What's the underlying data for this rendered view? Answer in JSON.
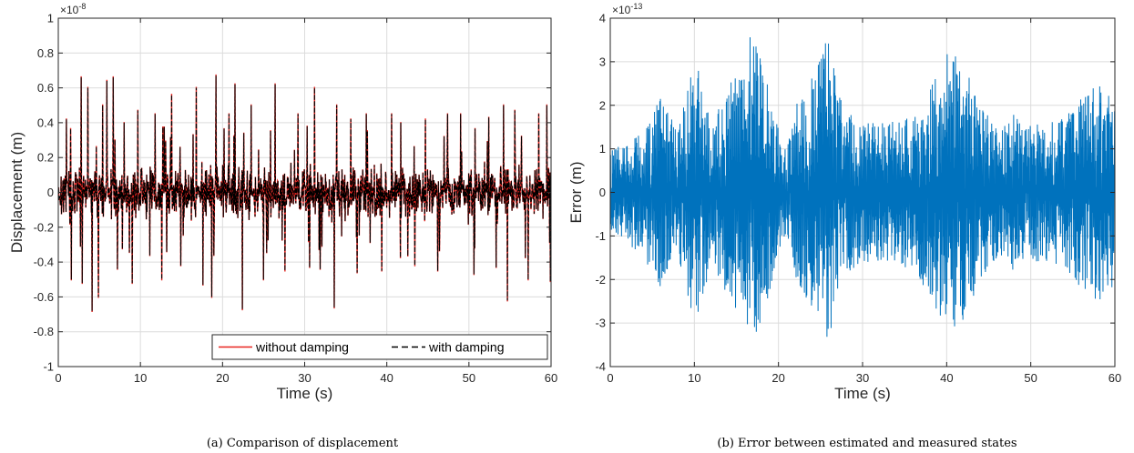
{
  "chart_data": [
    {
      "type": "line",
      "caption": "(a) Comparison of displacement",
      "xlabel": "Time (s)",
      "ylabel": "Displacement (m)",
      "xlim": [
        0,
        60
      ],
      "ylim": [
        -1,
        1
      ],
      "y_multiplier": "×10",
      "y_exponent": "-8",
      "xticks": [
        0,
        10,
        20,
        30,
        40,
        50,
        60
      ],
      "yticks": [
        -1,
        -0.8,
        -0.6,
        -0.4,
        -0.2,
        0,
        0.2,
        0.4,
        0.6,
        0.8,
        1
      ],
      "ytick_labels": [
        "-1",
        "-0.8",
        "-0.6",
        "-0.4",
        "-0.2",
        "0",
        "0.2",
        "0.4",
        "0.6",
        "0.8",
        "1"
      ],
      "grid": true,
      "legend_position": "bottom-right",
      "noise_amplitude": 0.16,
      "series": [
        {
          "name": "without damping",
          "color": "#e8231f",
          "style": "solid"
        },
        {
          "name": "with damping",
          "color": "#000000",
          "style": "dashed"
        }
      ],
      "peaks": [
        [
          1.0,
          0.42
        ],
        [
          1.6,
          -0.5
        ],
        [
          2.8,
          0.66
        ],
        [
          2.9,
          -0.52
        ],
        [
          3.6,
          0.6
        ],
        [
          4.1,
          -0.68
        ],
        [
          4.9,
          -0.6
        ],
        [
          5.4,
          0.5
        ],
        [
          5.9,
          0.64
        ],
        [
          6.7,
          0.66
        ],
        [
          7.2,
          -0.44
        ],
        [
          8.0,
          0.4
        ],
        [
          9.0,
          -0.52
        ],
        [
          9.7,
          0.47
        ],
        [
          11.8,
          0.45
        ],
        [
          12.6,
          -0.5
        ],
        [
          13.8,
          0.56
        ],
        [
          14.9,
          -0.42
        ],
        [
          16.8,
          0.6
        ],
        [
          17.6,
          -0.53
        ],
        [
          18.7,
          -0.6
        ],
        [
          19.2,
          0.67
        ],
        [
          20.8,
          0.45
        ],
        [
          21.5,
          0.62
        ],
        [
          22.4,
          -0.67
        ],
        [
          23.5,
          0.5
        ],
        [
          25.0,
          -0.5
        ],
        [
          26.4,
          0.62
        ],
        [
          27.6,
          -0.45
        ],
        [
          29.2,
          0.45
        ],
        [
          30.6,
          -0.43
        ],
        [
          31.2,
          0.6
        ],
        [
          31.9,
          -0.44
        ],
        [
          33.6,
          -0.66
        ],
        [
          33.9,
          0.5
        ],
        [
          35.6,
          0.42
        ],
        [
          36.4,
          -0.46
        ],
        [
          37.5,
          0.45
        ],
        [
          39.4,
          -0.45
        ],
        [
          40.6,
          0.45
        ],
        [
          41.7,
          0.4
        ],
        [
          43.4,
          -0.42
        ],
        [
          44.7,
          0.42
        ],
        [
          46.2,
          -0.45
        ],
        [
          47.4,
          0.45
        ],
        [
          49.0,
          0.45
        ],
        [
          50.6,
          -0.47
        ],
        [
          52.4,
          0.43
        ],
        [
          53.3,
          -0.43
        ],
        [
          54.2,
          0.5
        ],
        [
          54.7,
          -0.62
        ],
        [
          55.6,
          0.47
        ],
        [
          57.2,
          -0.5
        ],
        [
          58.5,
          0.45
        ],
        [
          59.5,
          0.5
        ],
        [
          59.9,
          -0.51
        ]
      ]
    },
    {
      "type": "line",
      "caption": "(b) Error between estimated and measured states",
      "xlabel": "Time (s)",
      "ylabel": "Error (m)",
      "xlim": [
        0,
        60
      ],
      "ylim": [
        -4,
        4
      ],
      "y_multiplier": "×10",
      "y_exponent": "-13",
      "xticks": [
        0,
        10,
        20,
        30,
        40,
        50,
        60
      ],
      "yticks": [
        -4,
        -3,
        -2,
        -1,
        0,
        1,
        2,
        3,
        4
      ],
      "ytick_labels": [
        "-4",
        "-3",
        "-2",
        "-1",
        "0",
        "1",
        "2",
        "3",
        "4"
      ],
      "grid": true,
      "color": "#0072bd",
      "envelope": [
        [
          0,
          1.0
        ],
        [
          2,
          1.2
        ],
        [
          4,
          1.5
        ],
        [
          6,
          2.2
        ],
        [
          8,
          1.4
        ],
        [
          10,
          3.0
        ],
        [
          11,
          2.6
        ],
        [
          12,
          1.5
        ],
        [
          14,
          2.5
        ],
        [
          16,
          3.0
        ],
        [
          17,
          3.9
        ],
        [
          18,
          3.2
        ],
        [
          19,
          2.3
        ],
        [
          20,
          1.5
        ],
        [
          21,
          1.0
        ],
        [
          22,
          2.0
        ],
        [
          24,
          2.7
        ],
        [
          26,
          3.7
        ],
        [
          27,
          2.3
        ],
        [
          28,
          1.9
        ],
        [
          30,
          1.6
        ],
        [
          32,
          1.6
        ],
        [
          34,
          1.7
        ],
        [
          36,
          1.8
        ],
        [
          38,
          2.4
        ],
        [
          40,
          3.3
        ],
        [
          41,
          3.2
        ],
        [
          42,
          3.0
        ],
        [
          44,
          2.0
        ],
        [
          46,
          1.5
        ],
        [
          48,
          1.8
        ],
        [
          50,
          1.6
        ],
        [
          52,
          1.6
        ],
        [
          54,
          1.7
        ],
        [
          56,
          2.2
        ],
        [
          58,
          2.5
        ],
        [
          60,
          2.2
        ]
      ]
    }
  ]
}
